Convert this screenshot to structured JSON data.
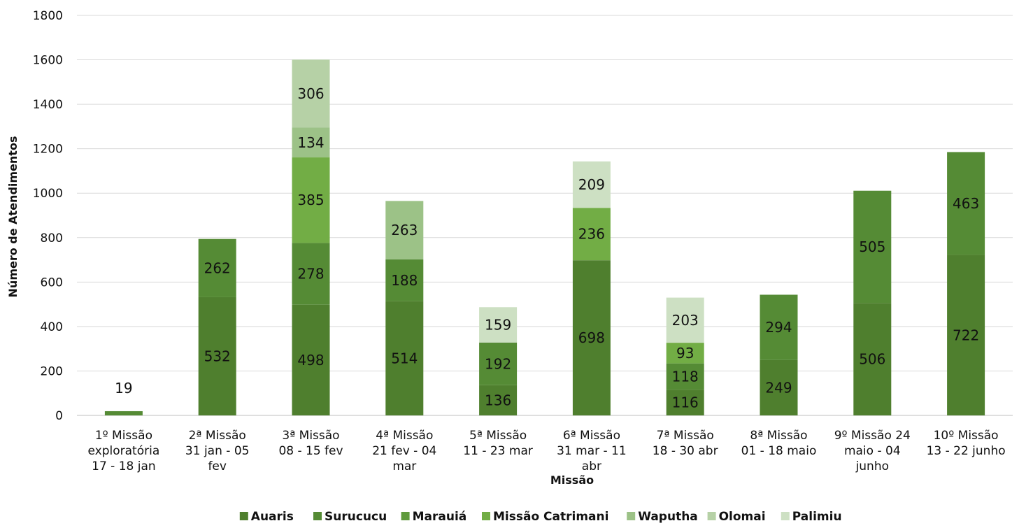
{
  "chart_data": {
    "type": "bar",
    "stacked": true,
    "ylabel": "Número de Atendimentos",
    "xlabel": "Missão",
    "ylim": [
      0,
      1800
    ],
    "yticks": [
      "0",
      "200",
      "400",
      "600",
      "800",
      "1000",
      "1200",
      "1400",
      "1600",
      "1800"
    ],
    "grid": true,
    "legend_position": "bottom",
    "categories": [
      [
        "1º Missão",
        "exploratória",
        "17 - 18 jan"
      ],
      [
        "2ª Missão",
        "31 jan - 05",
        "fev"
      ],
      [
        "3ª Missão",
        "08 - 15 fev"
      ],
      [
        "4ª Missão",
        "21 fev - 04",
        "mar"
      ],
      [
        "5ª Missão",
        "11 - 23 mar"
      ],
      [
        "6ª Missão",
        "31 mar - 11",
        "abr"
      ],
      [
        "7ª Missão",
        "18 - 30 abr"
      ],
      [
        "8ª Missão",
        "01 - 18 maio"
      ],
      [
        "9º Missão 24",
        "maio - 04",
        "junho"
      ],
      [
        "10º Missão",
        "13 - 22 junho"
      ]
    ],
    "series": [
      {
        "name": "Auaris",
        "color": "#4f7f2e",
        "values": [
          null,
          532,
          498,
          514,
          136,
          698,
          116,
          249,
          506,
          722
        ]
      },
      {
        "name": "Surucucu",
        "color": "#558b35",
        "values": [
          19,
          262,
          278,
          188,
          192,
          null,
          118,
          294,
          505,
          463
        ]
      },
      {
        "name": "Marauiá",
        "color": "#5f9a3c",
        "values": [
          null,
          null,
          null,
          null,
          null,
          null,
          null,
          null,
          null,
          null
        ]
      },
      {
        "name": "Missão Catrimani",
        "color": "#72ad45",
        "values": [
          null,
          null,
          385,
          null,
          null,
          236,
          93,
          null,
          null,
          null
        ]
      },
      {
        "name": "Waputha",
        "color": "#9cc287",
        "values": [
          null,
          null,
          134,
          263,
          null,
          null,
          null,
          null,
          null,
          null
        ]
      },
      {
        "name": "Olomai",
        "color": "#b6d1a6",
        "values": [
          null,
          null,
          306,
          null,
          null,
          null,
          null,
          null,
          null,
          null
        ]
      },
      {
        "name": "Palimiu",
        "color": "#cde0c3",
        "values": [
          null,
          null,
          null,
          null,
          159,
          209,
          203,
          null,
          null,
          null
        ]
      }
    ]
  }
}
